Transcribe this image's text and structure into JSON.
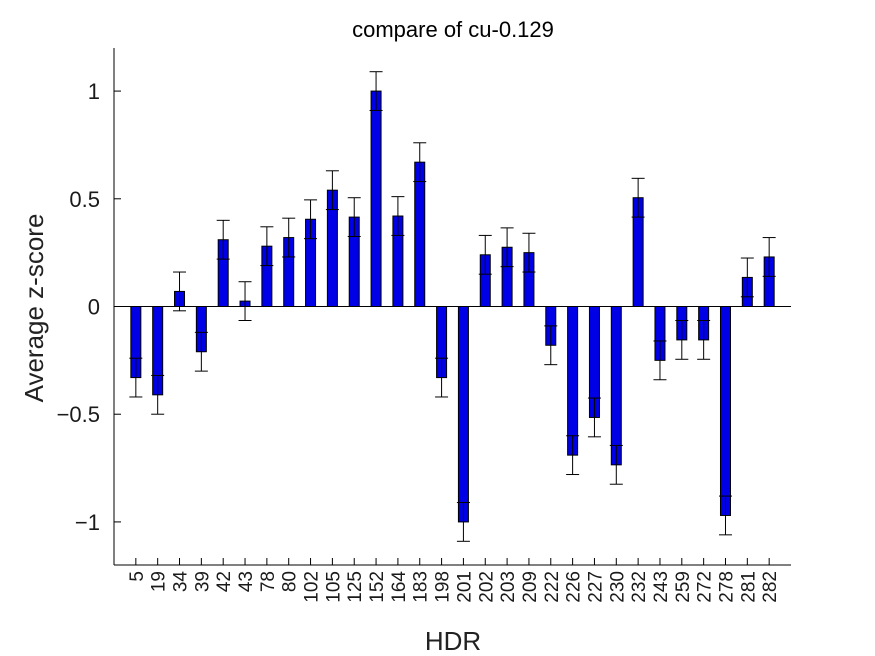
{
  "chart_data": {
    "type": "bar",
    "title": "compare of cu-0.129",
    "xlabel": "HDR",
    "ylabel": "Average z-score",
    "ylim": [
      -1.2,
      1.2
    ],
    "yticks": [
      -1,
      -0.5,
      0,
      0.5,
      1
    ],
    "ytick_labels": [
      "−1",
      "−0.5",
      "0",
      "0.5",
      "1"
    ],
    "categories": [
      "5",
      "19",
      "34",
      "39",
      "42",
      "43",
      "78",
      "80",
      "102",
      "105",
      "125",
      "152",
      "164",
      "183",
      "198",
      "201",
      "202",
      "203",
      "209",
      "222",
      "226",
      "227",
      "230",
      "232",
      "243",
      "259",
      "272",
      "278",
      "281",
      "282"
    ],
    "values": [
      -0.33,
      -0.41,
      0.07,
      -0.21,
      0.31,
      0.025,
      0.28,
      0.32,
      0.405,
      0.54,
      0.415,
      1.0,
      0.42,
      0.67,
      -0.33,
      -1.0,
      0.24,
      0.275,
      0.25,
      -0.18,
      -0.69,
      -0.515,
      -0.735,
      0.505,
      -0.25,
      -0.155,
      -0.155,
      -0.97,
      0.135,
      0.23
    ],
    "error": [
      0.09,
      0.09,
      0.09,
      0.09,
      0.09,
      0.09,
      0.09,
      0.09,
      0.09,
      0.09,
      0.09,
      0.09,
      0.09,
      0.09,
      0.09,
      0.09,
      0.09,
      0.09,
      0.09,
      0.09,
      0.09,
      0.09,
      0.09,
      0.09,
      0.09,
      0.09,
      0.09,
      0.09,
      0.09,
      0.09
    ],
    "bar_color": "#0000e6",
    "grid": false
  }
}
